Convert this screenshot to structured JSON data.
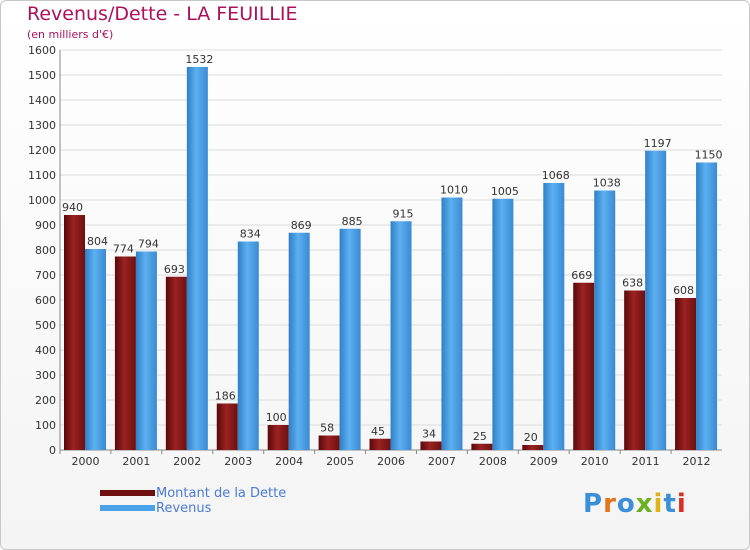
{
  "header": {
    "title": "Revenus/Dette - LA FEUILLIE",
    "subtitle": "(en milliers d'€)"
  },
  "logo": {
    "text": "Proxiti",
    "letter_colors": [
      "#3a8fd8",
      "#e4731c",
      "#3a8fd8",
      "#6ab023",
      "#e0b21a",
      "#3a8fd8",
      "#d8321f"
    ]
  },
  "chart_data": {
    "type": "bar",
    "title": "Revenus/Dette - LA FEUILLIE",
    "subtitle": "(en milliers d'€)",
    "xlabel": "",
    "ylabel": "",
    "categories": [
      "2000",
      "2001",
      "2002",
      "2003",
      "2004",
      "2005",
      "2006",
      "2007",
      "2008",
      "2009",
      "2010",
      "2011",
      "2012"
    ],
    "series": [
      {
        "name": "Montant de la Dette",
        "color": "#8b1a1a",
        "values": [
          940,
          774,
          693,
          186,
          100,
          58,
          45,
          34,
          25,
          20,
          669,
          638,
          608
        ],
        "labels": [
          "940",
          "774",
          "693",
          "186",
          "100",
          "58",
          "45",
          "34",
          "25",
          "20",
          "669",
          "638",
          "608"
        ]
      },
      {
        "name": "Revenus",
        "color": "#4aa3e8",
        "values": [
          804,
          794,
          1532,
          834,
          869,
          885,
          915,
          1010,
          1005,
          1068,
          1038,
          1197,
          1150
        ],
        "labels": [
          "804",
          "794",
          "1532",
          "834",
          "869",
          "885",
          "915",
          "1010",
          "1005",
          "1068",
          "1038",
          "1197",
          "1150"
        ]
      }
    ],
    "ylim": [
      0,
      1600
    ],
    "yticks": [
      0,
      100,
      200,
      300,
      400,
      500,
      600,
      700,
      800,
      900,
      1000,
      1100,
      1200,
      1300,
      1400,
      1500,
      1600
    ],
    "ytick_labels": [
      "0",
      "100",
      "200",
      "300",
      "400",
      "500",
      "600",
      "700",
      "800",
      "900",
      "1000",
      "1100",
      "1200",
      "1300",
      "1400",
      "1500",
      "1600"
    ],
    "grid": true,
    "legend_position": "bottom-left"
  }
}
